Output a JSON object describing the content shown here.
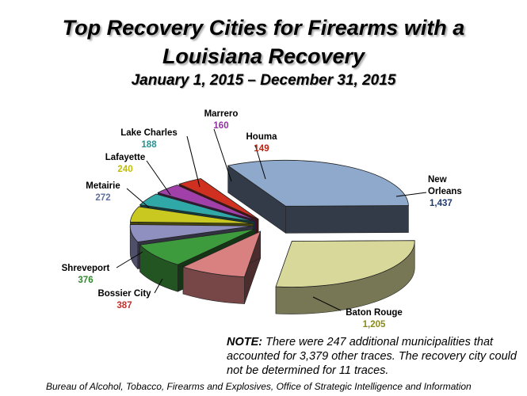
{
  "title_line1": "Top Recovery Cities for Firearms with a",
  "title_line2": "Louisiana Recovery",
  "subtitle": "January 1, 2015 – December 31, 2015",
  "note_label": "NOTE:",
  "note_text": "There were 247 additional municipalities that accounted for 3,379 other traces.  The recovery city could not be determined for 11 traces.",
  "source": "Bureau of Alcohol, Tobacco, Firearms and Explosives, Office of Strategic Intelligence and Information",
  "chart_data": {
    "type": "pie",
    "title": "Top Recovery Cities for Firearms with a Louisiana Recovery",
    "style": "3d-exploded",
    "slices": [
      {
        "name": "New Orleans",
        "value": 1437,
        "value_label": "1,437",
        "color": "#8ea9cc",
        "label_color": "#1f3a6e"
      },
      {
        "name": "Baton Rouge",
        "value": 1205,
        "value_label": "1,205",
        "color": "#d8d89a",
        "label_color": "#8a8a1a"
      },
      {
        "name": "Bossier City",
        "value": 387,
        "value_label": "387",
        "color": "#d98080",
        "label_color": "#c0302a"
      },
      {
        "name": "Shreveport",
        "value": 376,
        "value_label": "376",
        "color": "#3d9a3d",
        "label_color": "#2e8b2e"
      },
      {
        "name": "Metairie",
        "value": 272,
        "value_label": "272",
        "color": "#9090c0",
        "label_color": "#6070a0"
      },
      {
        "name": "Lafayette",
        "value": 240,
        "value_label": "240",
        "color": "#c8c820",
        "label_color": "#c0c000"
      },
      {
        "name": "Lake Charles",
        "value": 188,
        "value_label": "188",
        "color": "#30a8a8",
        "label_color": "#2a9090"
      },
      {
        "name": "Marrero",
        "value": 160,
        "value_label": "160",
        "color": "#a040a8",
        "label_color": "#9030a0"
      },
      {
        "name": "Houma",
        "value": 149,
        "value_label": "149",
        "color": "#d03020",
        "label_color": "#c02010"
      }
    ]
  }
}
